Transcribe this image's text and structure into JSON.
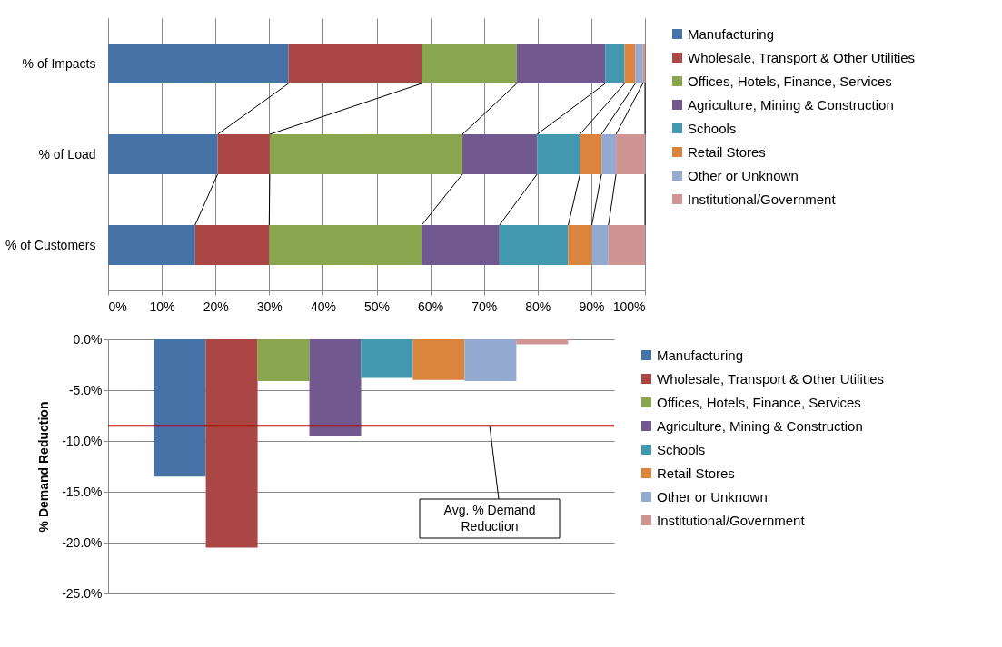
{
  "chart_data": [
    {
      "type": "bar",
      "orientation": "horizontal",
      "stacked": true,
      "categories": [
        "% of Impacts",
        "% of Load",
        "% of Customers"
      ],
      "series": [
        {
          "name": "Manufacturing",
          "color": "#4572a7",
          "values": [
            33.6,
            20.4,
            16.2
          ]
        },
        {
          "name": "Wholesale, Transport & Other Utilities",
          "color": "#aa4643",
          "values": [
            24.8,
            9.7,
            13.8
          ]
        },
        {
          "name": "Offices, Hotels, Finance, Services",
          "color": "#89a54e",
          "values": [
            17.7,
            35.9,
            28.4
          ]
        },
        {
          "name": "Agriculture, Mining & Construction",
          "color": "#71588f",
          "values": [
            16.5,
            13.9,
            14.5
          ]
        },
        {
          "name": "Schools",
          "color": "#4198af",
          "values": [
            3.6,
            8.0,
            12.8
          ]
        },
        {
          "name": "Retail Stores",
          "color": "#db843d",
          "values": [
            2.0,
            4.0,
            4.4
          ]
        },
        {
          "name": "Other or Unknown",
          "color": "#93a9cf",
          "values": [
            1.4,
            2.7,
            3.1
          ]
        },
        {
          "name": "Institutional/Government",
          "color": "#d09493",
          "values": [
            0.4,
            5.4,
            6.8
          ]
        }
      ],
      "xlim": [
        0,
        100
      ],
      "xticks": [
        {
          "value": 0,
          "label": "0%"
        },
        {
          "value": 10,
          "label": "10%"
        },
        {
          "value": 20,
          "label": "20%"
        },
        {
          "value": 30,
          "label": "30%"
        },
        {
          "value": 40,
          "label": "40%"
        },
        {
          "value": 50,
          "label": "50%"
        },
        {
          "value": 60,
          "label": "60%"
        },
        {
          "value": 70,
          "label": "70%"
        },
        {
          "value": 80,
          "label": "80%"
        },
        {
          "value": 90,
          "label": "90%"
        },
        {
          "value": 100,
          "label": "100%"
        }
      ],
      "grid": "x",
      "legend": "right"
    },
    {
      "type": "bar",
      "categories": [
        null
      ],
      "series": [
        {
          "name": "Manufacturing",
          "color": "#4572a7",
          "values": [
            -13.5
          ]
        },
        {
          "name": "Wholesale, Transport & Other Utilities",
          "color": "#aa4643",
          "values": [
            -20.5
          ]
        },
        {
          "name": "Offices, Hotels, Finance, Services",
          "color": "#89a54e",
          "values": [
            -4.1
          ]
        },
        {
          "name": "Agriculture, Mining & Construction",
          "color": "#71588f",
          "values": [
            -9.5
          ]
        },
        {
          "name": "Schools",
          "color": "#4198af",
          "values": [
            -3.8
          ]
        },
        {
          "name": "Retail Stores",
          "color": "#db843d",
          "values": [
            -4.0
          ]
        },
        {
          "name": "Other or Unknown",
          "color": "#93a9cf",
          "values": [
            -4.1
          ]
        },
        {
          "name": "Institutional/Government",
          "color": "#d09493",
          "values": [
            -0.5
          ]
        }
      ],
      "ylabel": "% Demand Reduction",
      "ylim": [
        -25,
        0
      ],
      "yticks": [
        {
          "value": 0,
          "label": "0.0%"
        },
        {
          "value": -5,
          "label": "-5.0%"
        },
        {
          "value": -10,
          "label": "-10.0%"
        },
        {
          "value": -15,
          "label": "-15.0%"
        },
        {
          "value": -20,
          "label": "-20.0%"
        },
        {
          "value": -25,
          "label": "-25.0%"
        }
      ],
      "ref_lines": [
        {
          "axis": "y",
          "value": -8.5,
          "color": "#c00000"
        }
      ],
      "annotations": [
        {
          "text": "Avg. % Demand Reduction",
          "y": -8.5
        }
      ],
      "grid": "y",
      "legend": "right",
      "tick_labels": "y"
    }
  ]
}
